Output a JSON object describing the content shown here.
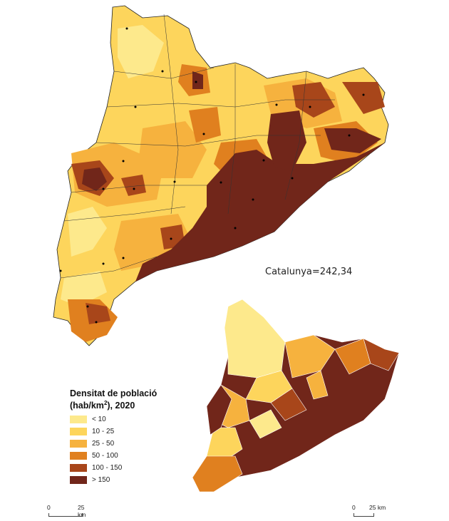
{
  "summary_label": "Catalunya=242,34",
  "legend": {
    "title_line1": "Densitat de població",
    "title_unit_pre": "(hab/km",
    "title_unit_sup": "2",
    "title_unit_post": "), 2020",
    "classes": [
      {
        "label": "< 10",
        "color": "#fde98c"
      },
      {
        "label": "10 - 25",
        "color": "#fdd55c"
      },
      {
        "label": "25 - 50",
        "color": "#f6b23e"
      },
      {
        "label": "50 - 100",
        "color": "#e0801f"
      },
      {
        "label": "100 - 150",
        "color": "#a8461a"
      },
      {
        "label": "> 150",
        "color": "#71261a"
      }
    ]
  },
  "scalebars": [
    {
      "zero": "0",
      "distance": "25 km"
    },
    {
      "zero": "0",
      "distance": "25 km"
    }
  ]
}
